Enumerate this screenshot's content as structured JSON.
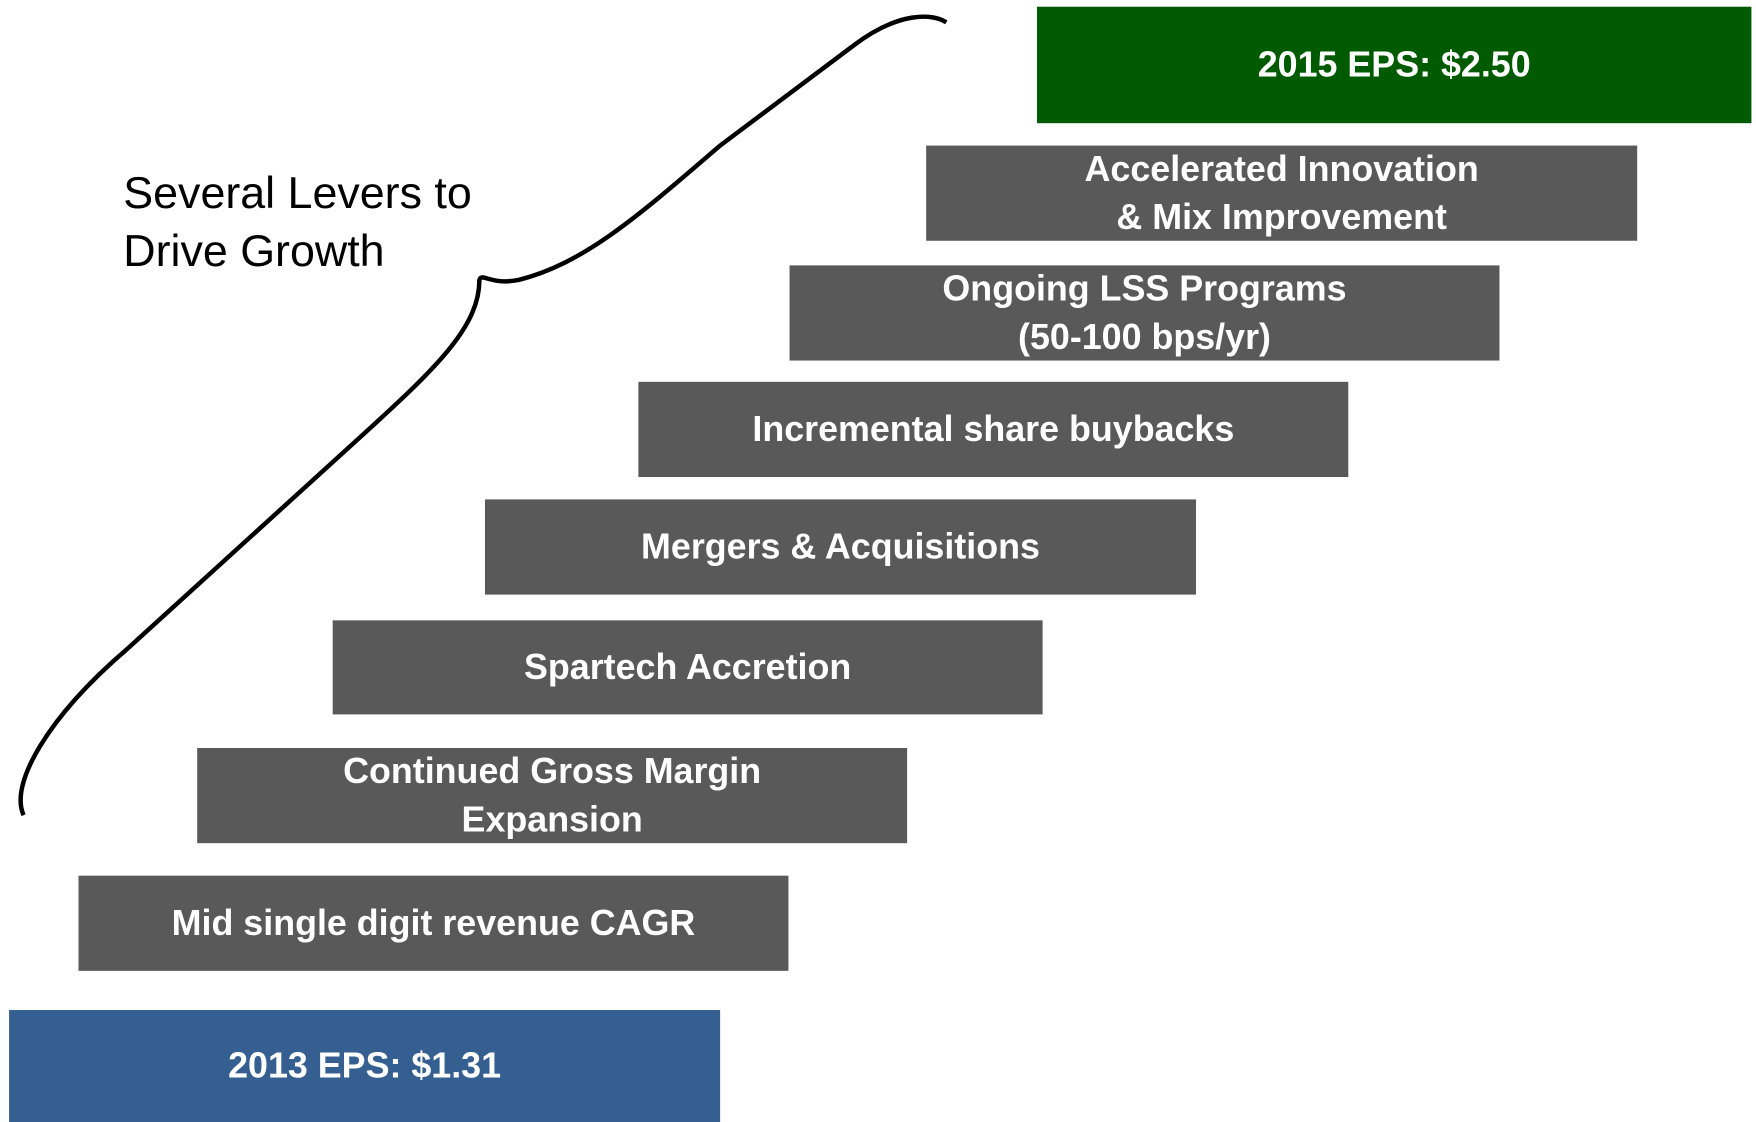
{
  "annotation": {
    "lines": [
      "Several Levers to",
      "Drive Growth"
    ]
  },
  "target": {
    "lines": [
      "2015 EPS: $2.50"
    ]
  },
  "levers": [
    {
      "lines": [
        "Accelerated Innovation",
        "& Mix Improvement"
      ]
    },
    {
      "lines": [
        "Ongoing LSS Programs",
        "(50-100 bps/yr)"
      ]
    },
    {
      "lines": [
        "Incremental share buybacks"
      ]
    },
    {
      "lines": [
        "Mergers & Acquisitions"
      ]
    },
    {
      "lines": [
        "Spartech Accretion"
      ]
    },
    {
      "lines": [
        "Continued Gross Margin",
        "Expansion"
      ]
    },
    {
      "lines": [
        "Mid single digit revenue CAGR"
      ]
    }
  ],
  "base": {
    "lines": [
      "2013 EPS: $1.31"
    ]
  }
}
